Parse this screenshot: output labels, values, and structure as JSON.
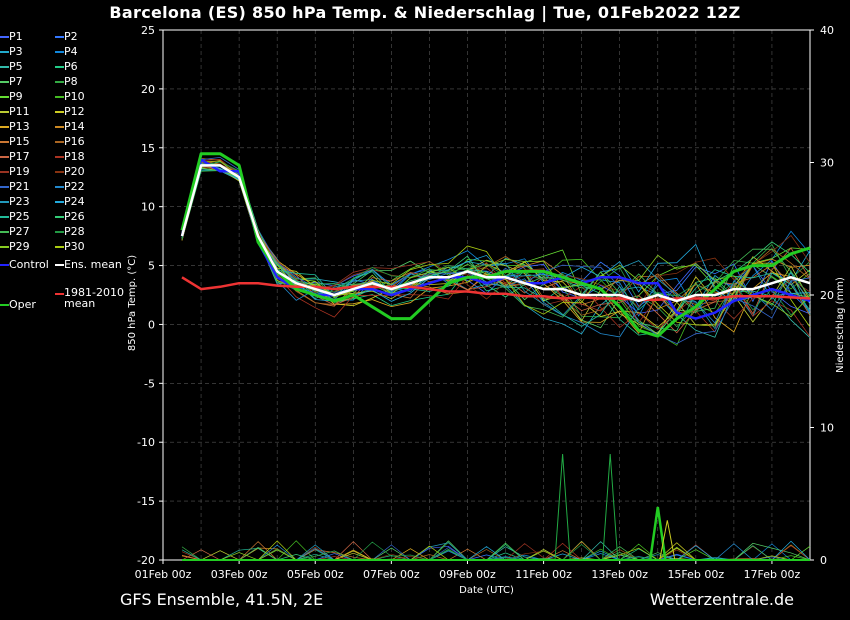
{
  "title": "Barcelona  (ES)  850 hPa Temp. & Niederschlag | Tue, 01Feb2022 12Z",
  "footer": {
    "left": "GFS Ensemble, 41.5N, 2E",
    "right": "Wetterzentrale.de"
  },
  "colors": {
    "background": "#000000",
    "control": "#2222ff",
    "ens_mean": "#ffffff",
    "oper": "#22cc22",
    "climate_mean": "#ee3333"
  },
  "chart_data": {
    "type": "line",
    "xlabel": "Date (UTC)",
    "ylabel": "850 hPa Temp. (°C)",
    "y2label": "Niederschlag (mm)",
    "ylim": [
      -20,
      25
    ],
    "y2lim": [
      0,
      40
    ],
    "yticks": [
      -20,
      -15,
      -10,
      -5,
      0,
      5,
      10,
      15,
      20,
      25
    ],
    "y2ticks": [
      0,
      10,
      20,
      30,
      40
    ],
    "xlim": [
      "2022-02-01 00:00",
      "2022-02-18 00:00"
    ],
    "xticks": [
      "01Feb 00z",
      "03Feb 00z",
      "05Feb 00z",
      "07Feb 00z",
      "09Feb 00z",
      "11Feb 00z",
      "13Feb 00z",
      "15Feb 00z",
      "17Feb 00z"
    ],
    "grid": true,
    "legend_entries": [
      "P1",
      "P2",
      "P3",
      "P4",
      "P5",
      "P6",
      "P7",
      "P8",
      "P9",
      "P10",
      "P11",
      "P12",
      "P13",
      "P14",
      "P15",
      "P16",
      "P17",
      "P18",
      "P19",
      "P20",
      "P21",
      "P22",
      "P23",
      "P24",
      "P25",
      "P26",
      "P27",
      "P28",
      "P29",
      "P30",
      "Control",
      "Ens. mean",
      "Oper",
      "1981-2010 mean"
    ],
    "series_x_days": [
      1.5,
      2,
      2.5,
      3,
      3.5,
      4,
      4.5,
      5,
      5.5,
      6,
      6.5,
      7,
      7.5,
      8,
      8.5,
      9,
      9.5,
      10,
      10.5,
      11,
      11.5,
      12,
      12.5,
      13,
      13.5,
      14,
      14.5,
      15,
      15.5,
      16,
      16.5,
      17,
      17.5,
      18
    ],
    "series": [
      {
        "name": "Ens. mean",
        "values": [
          7.5,
          13.5,
          13.5,
          12.5,
          7.5,
          4.5,
          3.5,
          3.0,
          2.5,
          3.0,
          3.5,
          3.0,
          3.5,
          4.0,
          4.0,
          4.5,
          4.0,
          4.0,
          3.5,
          3.0,
          3.0,
          2.5,
          2.5,
          2.5,
          2.0,
          2.5,
          2.0,
          2.5,
          2.5,
          3.0,
          3.0,
          3.5,
          4.0,
          3.5
        ]
      },
      {
        "name": "Control",
        "values": [
          7.5,
          14.0,
          13.0,
          13.0,
          7.0,
          4.0,
          3.0,
          2.5,
          2.5,
          3.0,
          3.0,
          2.5,
          3.0,
          3.5,
          4.0,
          4.0,
          3.5,
          4.0,
          3.5,
          3.5,
          4.0,
          3.5,
          4.0,
          4.0,
          3.5,
          3.5,
          1.0,
          0.5,
          1.0,
          2.0,
          2.5,
          3.0,
          2.5,
          2.0
        ]
      },
      {
        "name": "Oper",
        "values": [
          8.0,
          14.5,
          14.5,
          13.5,
          7.0,
          4.5,
          3.0,
          2.5,
          2.0,
          2.5,
          1.5,
          0.5,
          0.5,
          2.0,
          3.5,
          4.0,
          4.0,
          4.5,
          4.5,
          4.5,
          4.0,
          3.5,
          3.0,
          1.5,
          -0.5,
          -1.0,
          0.5,
          1.5,
          3.0,
          4.5,
          5.0,
          5.0,
          6.0,
          6.5
        ]
      },
      {
        "name": "1981-2010 mean",
        "values": [
          4.0,
          3.0,
          3.2,
          3.5,
          3.5,
          3.3,
          3.2,
          3.2,
          3.0,
          3.2,
          3.2,
          3.2,
          3.2,
          3.0,
          2.8,
          2.8,
          2.6,
          2.6,
          2.4,
          2.4,
          2.2,
          2.3,
          2.2,
          2.2,
          2.1,
          2.1,
          2.2,
          2.2,
          2.2,
          2.4,
          2.4,
          2.4,
          2.3,
          2.2
        ]
      }
    ],
    "precip_peaks_mm": [
      {
        "day": 11.5,
        "value": 8
      },
      {
        "day": 12.75,
        "value": 8
      },
      {
        "day": 14.0,
        "value": 4
      },
      {
        "day": 14.25,
        "value": 3
      }
    ]
  }
}
